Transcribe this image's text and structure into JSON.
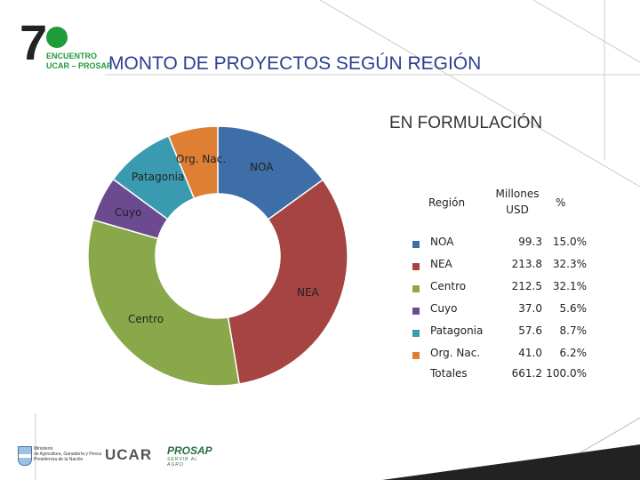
{
  "logo": {
    "number": "7",
    "line1": "ENCUENTRO",
    "line2": "UCAR – PROSAP"
  },
  "title": "MONTO DE PROYECTOS SEGÚN REGIÓN",
  "subtitle": "EN FORMULACIÓN",
  "table": {
    "col_region": "Región",
    "col_amount_1": "Millones",
    "col_amount_2": "USD",
    "col_pct": "%",
    "rows": [
      {
        "name": "NOA",
        "value": "99.3",
        "pct": "15.0%",
        "color": "#3e6ea8"
      },
      {
        "name": "NEA",
        "value": "213.8",
        "pct": "32.3%",
        "color": "#a54442"
      },
      {
        "name": "Centro",
        "value": "212.5",
        "pct": "32.1%",
        "color": "#88a84a"
      },
      {
        "name": "Cuyo",
        "value": "37.0",
        "pct": "5.6%",
        "color": "#6c4a8f"
      },
      {
        "name": "Patagonia",
        "value": "57.6",
        "pct": "8.7%",
        "color": "#3a9ab0"
      },
      {
        "name": "Org. Nac.",
        "value": "41.0",
        "pct": "6.2%",
        "color": "#df7f34"
      }
    ],
    "total_label": "Totales",
    "total_value": "661.2",
    "total_pct": "100.0%"
  },
  "chart_data": {
    "type": "pie",
    "title": "EN FORMULACIÓN",
    "donut": true,
    "unit": "Millones USD",
    "labels": [
      "NOA",
      "NEA",
      "Centro",
      "Cuyo",
      "Patagonia",
      "Org. Nac."
    ],
    "values": [
      99.3,
      213.8,
      212.5,
      37.0,
      57.6,
      41.0
    ],
    "percentages": [
      15.0,
      32.3,
      32.1,
      5.6,
      8.7,
      6.2
    ],
    "colors": [
      "#3e6ea8",
      "#a54442",
      "#88a84a",
      "#6c4a8f",
      "#3a9ab0",
      "#df7f34"
    ],
    "start": "12 o'clock",
    "direction": "clockwise",
    "total": 661.2
  },
  "footer": {
    "ministry": [
      "Ministerio",
      "de Agricultura, Ganadería y Pesca",
      "Presidencia de la Nación"
    ],
    "ucar": "UCAR",
    "prosap": "PROSAP",
    "prosap_tag": "SERVIR AL AGRO"
  }
}
